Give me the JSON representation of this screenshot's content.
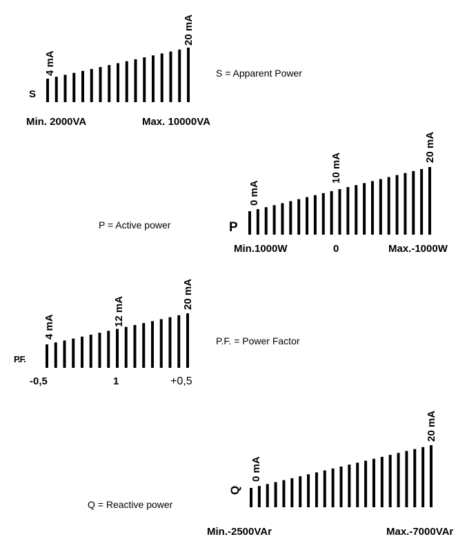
{
  "diagrams": [
    {
      "id": "apparent",
      "symbol": "S",
      "description": "S = Apparent Power",
      "range_labels": [
        "Min. 2000VA",
        "Max. 10000VA"
      ],
      "current_labels": [
        "4 mA",
        "20 mA"
      ],
      "bar_count": 17
    },
    {
      "id": "active",
      "symbol": "P",
      "description": "P = Active power",
      "range_labels": [
        "Min.1000W",
        "0",
        "Max.-1000W"
      ],
      "current_labels": [
        "0 mA",
        "10 mA",
        "20 mA"
      ],
      "bar_count": 23
    },
    {
      "id": "power-factor",
      "symbol": "P.F.",
      "description": "P.F. = Power Factor",
      "range_labels": [
        "-0,5",
        "1",
        "+0,5"
      ],
      "current_labels": [
        "4 mA",
        "12 mA",
        "20 mA"
      ],
      "bar_count": 17
    },
    {
      "id": "reactive",
      "symbol": "Q",
      "description": "Q = Reactive power",
      "range_labels": [
        "Min.-2500VAr",
        "Max.-7000VAr"
      ],
      "current_labels": [
        "0 mA",
        "20 mA"
      ],
      "bar_count": 23
    }
  ]
}
